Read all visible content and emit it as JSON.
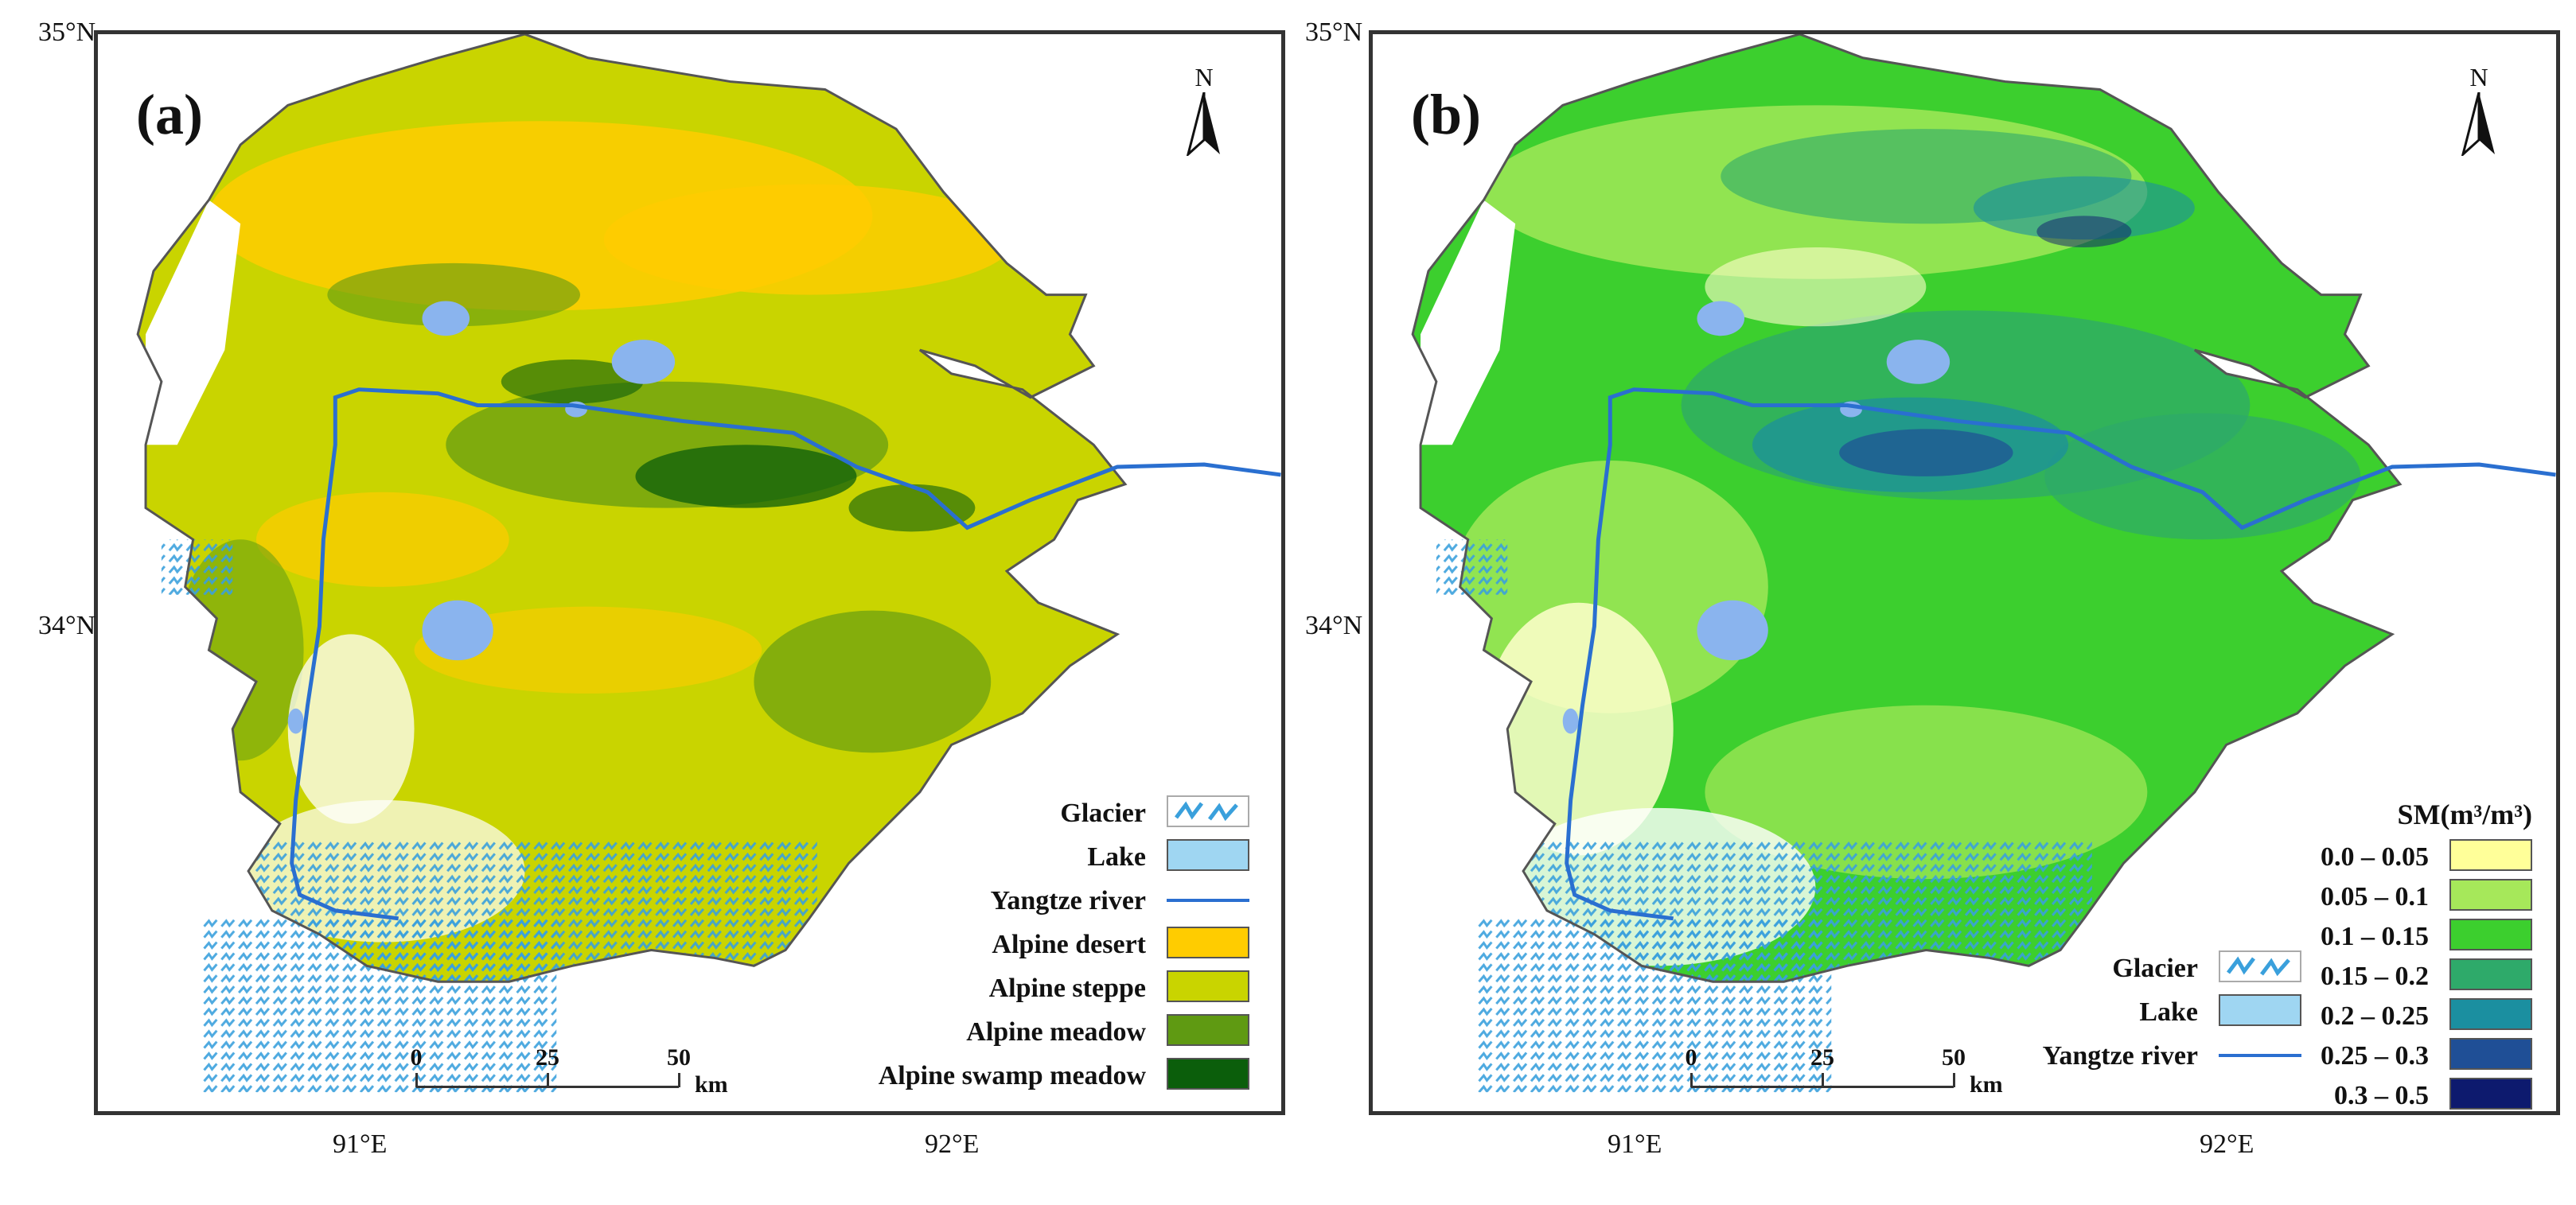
{
  "panel_a": {
    "label": "(a)",
    "north": "N",
    "lat_labels": [
      "35°N",
      "34°N"
    ],
    "lon_labels": [
      "91°E",
      "92°E"
    ],
    "scale": {
      "ticks": [
        "0",
        "25",
        "50"
      ],
      "unit": "km"
    },
    "legend": [
      {
        "label": "Glacier",
        "kind": "glacier",
        "color": "#3aa0dc"
      },
      {
        "label": "Lake",
        "kind": "fill",
        "color": "#9fd6f2"
      },
      {
        "label": "Yangtze river",
        "kind": "line",
        "color": "#2a6fd0"
      },
      {
        "label": "Alpine desert",
        "kind": "fill",
        "color": "#ffcc00"
      },
      {
        "label": "Alpine steppe",
        "kind": "fill",
        "color": "#c9d400"
      },
      {
        "label": "Alpine meadow",
        "kind": "fill",
        "color": "#5f9a12"
      },
      {
        "label": "Alpine swamp meadow",
        "kind": "fill",
        "color": "#0b5e0b"
      }
    ]
  },
  "panel_b": {
    "label": "(b)",
    "north": "N",
    "lat_labels": [
      "35°N",
      "34°N"
    ],
    "lon_labels": [
      "91°E",
      "92°E"
    ],
    "scale": {
      "ticks": [
        "0",
        "25",
        "50"
      ],
      "unit": "km"
    },
    "legend": [
      {
        "label": "Glacier",
        "kind": "glacier",
        "color": "#3aa0dc"
      },
      {
        "label": "Lake",
        "kind": "fill",
        "color": "#9fd6f2"
      },
      {
        "label": "Yangtze river",
        "kind": "line",
        "color": "#2a6fd0"
      }
    ],
    "sm_legend": {
      "title": "SM(m³/m³)",
      "classes": [
        {
          "label": "0.0 – 0.05",
          "color": "#ffff99"
        },
        {
          "label": "0.05 – 0.1",
          "color": "#a6e85a"
        },
        {
          "label": "0.1 – 0.15",
          "color": "#3ccf2e"
        },
        {
          "label": "0.15 – 0.2",
          "color": "#2eaa6a"
        },
        {
          "label": "0.2 – 0.25",
          "color": "#1b8fa0"
        },
        {
          "label": "0.25 – 0.3",
          "color": "#1f4f96"
        },
        {
          "label": "0.3 – 0.5",
          "color": "#0d1a6e"
        }
      ]
    }
  },
  "colors": {
    "boundary": "#555555",
    "river": "#2a6fd0",
    "lake": "#8ab4ee",
    "glacier": "#3aa0dc"
  }
}
